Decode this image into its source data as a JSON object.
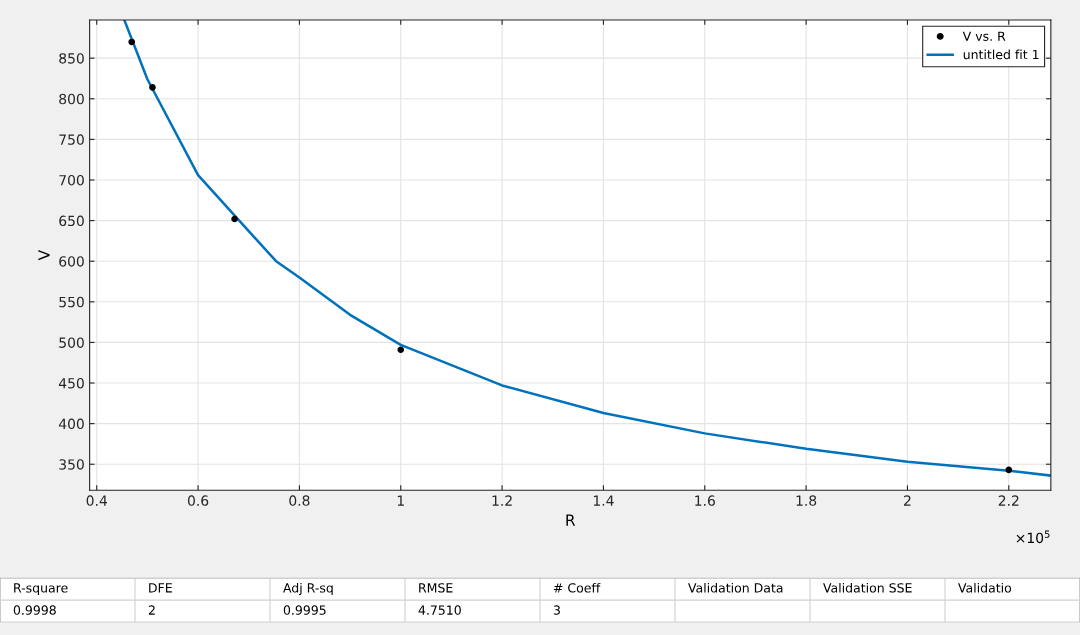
{
  "chart_data": [
    {
      "type": "scatter",
      "xlabel": "R",
      "ylabel": "V",
      "xlim": [
        0.386,
        2.283
      ],
      "ylim": [
        318,
        897
      ],
      "xticks": [
        0.4,
        0.6,
        0.8,
        1,
        1.2,
        1.4,
        1.6,
        1.8,
        2,
        2.2
      ],
      "yticks": [
        350,
        400,
        450,
        500,
        550,
        600,
        650,
        700,
        750,
        800,
        850
      ],
      "grid": true,
      "legend": "top right",
      "annotations": [
        "×10$^{5}$"
      ],
      "series": [
        {
          "name": "V vs. R",
          "type": "scatter",
          "marker": "circle",
          "color": "#000000",
          "x": [
            0.469,
            0.51,
            0.672,
            1.0,
            2.2
          ],
          "values": [
            870,
            814,
            652,
            491,
            343
          ]
        },
        {
          "name": "untitled fit 1",
          "type": "line",
          "marker": "none",
          "line_style": "solid",
          "color": "#0072bd",
          "x": [
            0.455,
            0.5,
            0.6,
            0.7,
            0.754,
            0.8,
            0.9,
            1.0,
            1.2,
            1.4,
            1.6,
            1.8,
            2.0,
            2.2,
            2.283
          ],
          "values": [
            896,
            824,
            706,
            637,
            600,
            580,
            534,
            497,
            447,
            413,
            388,
            369,
            353,
            342,
            336
          ]
        }
      ]
    },
    {
      "type": "other",
      "categories": [
        "R-square",
        "DFE",
        "Adj R-sq",
        "RMSE",
        "# Coeff",
        "Validation Data",
        "Validation SSE",
        "Validatio"
      ],
      "cell_labels": [
        [
          "0.9998",
          "2",
          "0.9995",
          "4.7510",
          "3",
          null,
          null,
          null
        ]
      ]
    }
  ]
}
